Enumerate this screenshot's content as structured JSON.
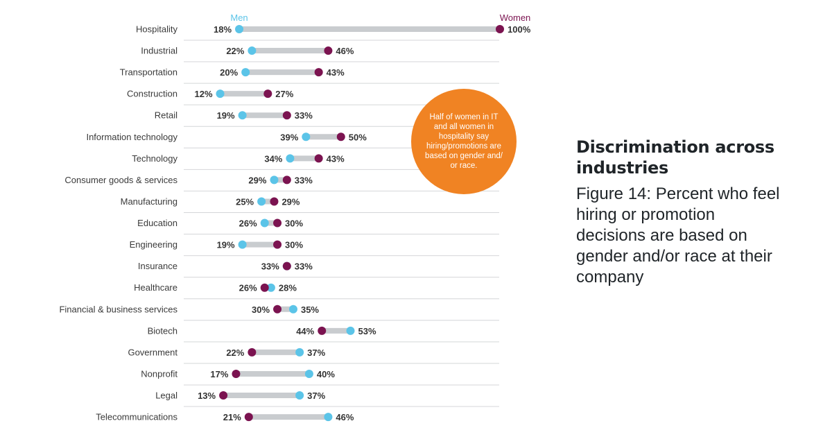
{
  "chart_data": {
    "type": "dumbbell",
    "legend": {
      "men": "Men",
      "women": "Women",
      "placement": "top"
    },
    "colors": {
      "men": "#5bc4e8",
      "women": "#7b1350",
      "connector": "#c9cccf",
      "grid": "#d4d6d8"
    },
    "unit": "%",
    "categories": [
      "Hospitality",
      "Industrial",
      "Transportation",
      "Construction",
      "Retail",
      "Information technology",
      "Technology",
      "Consumer goods & services",
      "Manufacturing",
      "Education",
      "Engineering",
      "Insurance",
      "Healthcare",
      "Financial & business services",
      "Biotech",
      "Government",
      "Nonprofit",
      "Legal",
      "Telecommunications"
    ],
    "series": [
      {
        "name": "Men",
        "values": [
          18,
          22,
          20,
          12,
          19,
          39,
          34,
          29,
          25,
          26,
          19,
          33,
          28,
          35,
          53,
          37,
          40,
          37,
          46
        ]
      },
      {
        "name": "Women",
        "values": [
          100,
          46,
          43,
          27,
          33,
          50,
          43,
          33,
          29,
          30,
          30,
          33,
          26,
          30,
          44,
          22,
          17,
          13,
          21
        ]
      }
    ],
    "xlim": [
      0,
      100
    ],
    "grid": true
  },
  "callout": {
    "text": "Half of women in IT and all women in hospitality say hiring/promotions are based on gender and/ or race.",
    "color": "#f08323"
  },
  "side": {
    "title": "Discrimination across industries",
    "caption": "Figure 14: Percent who feel hiring or promotion decisions are based on gender and/or race at their company"
  }
}
